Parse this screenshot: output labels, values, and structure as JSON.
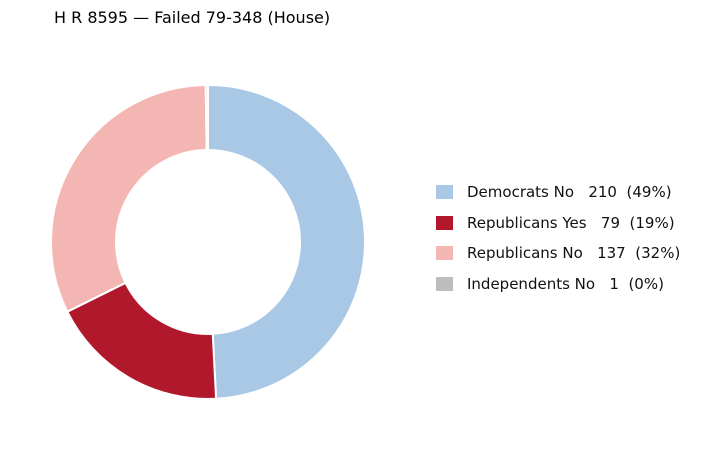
{
  "chart_data": {
    "type": "pie",
    "title": "H R 8595 — Failed 79-348 (House)",
    "donut": true,
    "start_direction": "top",
    "rotation": "clockwise",
    "legend_position": "right",
    "slices": [
      {
        "label": "Democrats No",
        "value": 210,
        "percent_label": "(49%)",
        "color": "#a8c8e6",
        "legend_text": "Democrats No   210  (49%)"
      },
      {
        "label": "Republicans Yes",
        "value": 79,
        "percent_label": "(19%)",
        "color": "#b2182b",
        "legend_text": "Republicans Yes   79  (19%)"
      },
      {
        "label": "Republicans No",
        "value": 137,
        "percent_label": "(32%)",
        "color": "#f4b6b3",
        "legend_text": "Republicans No   137  (32%)"
      },
      {
        "label": "Independents No",
        "value": 1,
        "percent_label": "(0%)",
        "color": "#bdbdbd",
        "legend_text": "Independents No   1  (0%)"
      }
    ]
  }
}
